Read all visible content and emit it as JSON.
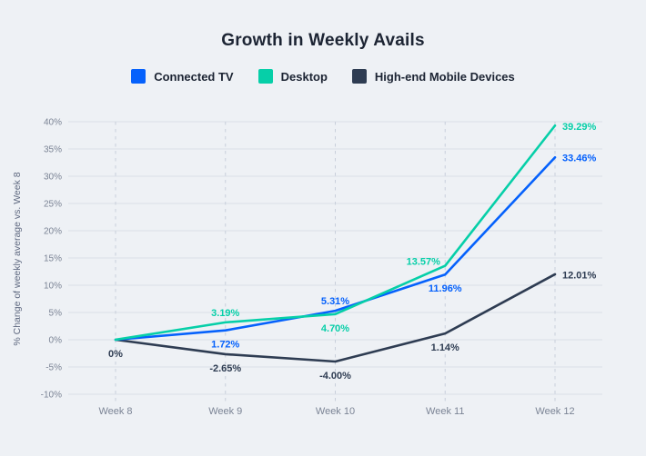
{
  "header": {
    "title": "Growth in Weekly Avails"
  },
  "legend": [
    {
      "label": "Connected TV",
      "color": "#0561fc"
    },
    {
      "label": "Desktop",
      "color": "#06cfa8"
    },
    {
      "label": "High-end Mobile Devices",
      "color": "#2e3c52"
    }
  ],
  "colors": {
    "background": "#eef1f5",
    "grid": "#d9dee7",
    "grid_dashed": "#c8cfdb",
    "axis_text": "#7b8495",
    "axis_title_text": "#5f6980",
    "title_text": "#1c2433"
  },
  "chart_data": {
    "type": "line",
    "title": "Growth in Weekly Avails",
    "xlabel": "",
    "ylabel": "% Change of weekly average vs. Week 8",
    "categories": [
      "Week 8",
      "Week 9",
      "Week 10",
      "Week 11",
      "Week 12"
    ],
    "ylim": [
      -10,
      40
    ],
    "ytick_step": 5,
    "ytick_labels": [
      "40%",
      "35%",
      "30%",
      "25%",
      "20%",
      "15%",
      "10%",
      "5%",
      "0%",
      "-5%",
      "-10%"
    ],
    "grid": {
      "horizontal": "solid",
      "vertical": "dashed"
    },
    "legend_position": "top",
    "series": [
      {
        "name": "Connected TV",
        "color": "#0561fc",
        "values": [
          0,
          1.72,
          5.31,
          11.96,
          33.46
        ],
        "labels": [
          "",
          "1.72%",
          "5.31%",
          "11.96%",
          "33.46%"
        ],
        "label_placements": [
          "none",
          "below",
          "above",
          "below",
          "right"
        ]
      },
      {
        "name": "Desktop",
        "color": "#06cfa8",
        "values": [
          0,
          3.19,
          4.7,
          13.57,
          39.29
        ],
        "labels": [
          "",
          "3.19%",
          "4.70%",
          "13.57%",
          "39.29%"
        ],
        "label_placements": [
          "none",
          "above",
          "below",
          "above-left",
          "right"
        ]
      },
      {
        "name": "High-end Mobile Devices",
        "color": "#2e3c52",
        "values": [
          0,
          -2.65,
          -4.0,
          1.14,
          12.01
        ],
        "labels": [
          "0%",
          "-2.65%",
          "-4.00%",
          "1.14%",
          "12.01%"
        ],
        "label_placements": [
          "below",
          "below",
          "below",
          "below",
          "right"
        ]
      }
    ]
  }
}
